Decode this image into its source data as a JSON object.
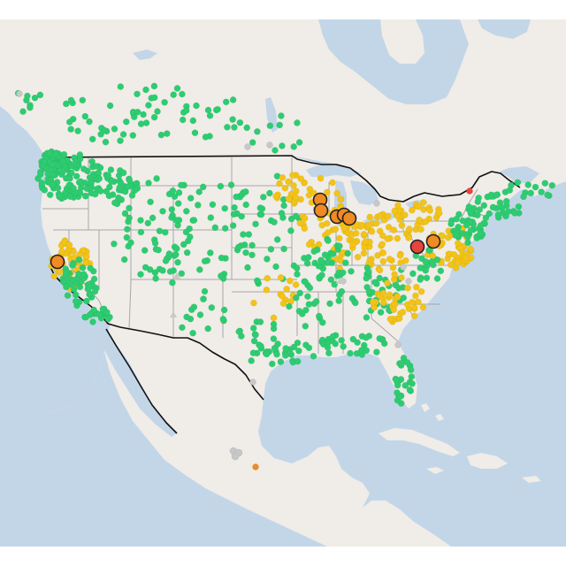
{
  "map": {
    "colors": {
      "ocean": "#c3d6e8",
      "land": "#f0ece8",
      "land_alt": "#e9e4df",
      "water_lakes": "#c3d6e8",
      "state_lines": "#a7a7a7",
      "country_border": "#111111",
      "good": "#2ecc71",
      "moderate": "#f2c318",
      "unhealthy_sensitive": "#f08a24",
      "unhealthy": "#e8443a",
      "no_data": "#c8c8c8"
    },
    "legend": "none",
    "marker_styles": [
      "small-dot",
      "large-ringed-circle",
      "triangle"
    ]
  }
}
